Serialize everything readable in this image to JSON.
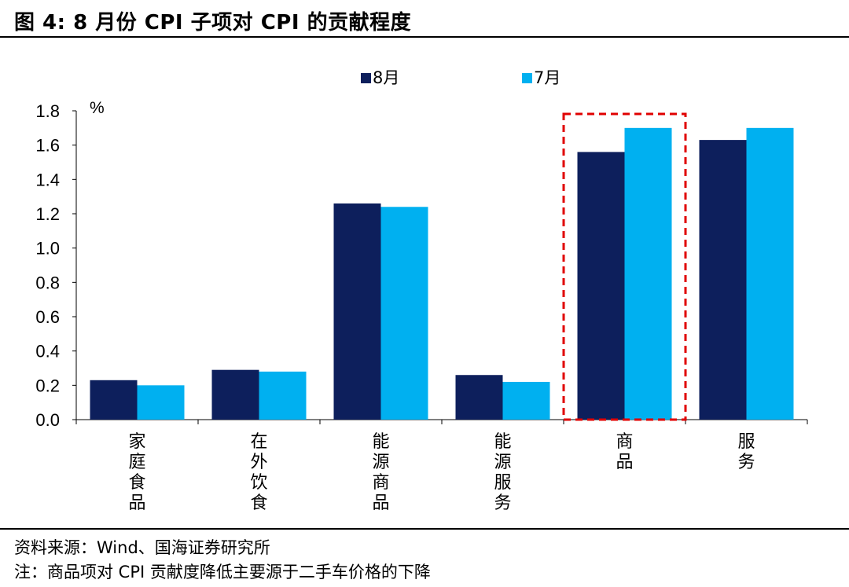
{
  "title": "图 4:  8 月份 CPI 子项对 CPI 的贡献程度",
  "source": "资料来源：Wind、国海证券研究所",
  "note": "注：商品项对 CPI 贡献度降低主要源于二手车价格的下降",
  "colors": {
    "aug": "#0d1f5c",
    "jul": "#00b0f0",
    "highlight": "#e00000"
  },
  "chart_data": {
    "type": "bar",
    "categories": [
      "家庭食品",
      "在外饮食",
      "能源商品",
      "能源服务",
      "商品",
      "服务"
    ],
    "series": [
      {
        "name": "8月",
        "values": [
          0.23,
          0.29,
          1.26,
          0.26,
          1.56,
          1.63
        ]
      },
      {
        "name": "7月",
        "values": [
          0.2,
          0.28,
          1.24,
          0.22,
          1.7,
          1.7
        ]
      }
    ],
    "ylabel": "%",
    "ylim": [
      0,
      1.8
    ],
    "yticks": [
      "0.0",
      "0.2",
      "0.4",
      "0.6",
      "0.8",
      "1.0",
      "1.2",
      "1.4",
      "1.6",
      "1.8"
    ],
    "legend": "top-center",
    "grid": false,
    "highlight_category": "商品"
  }
}
